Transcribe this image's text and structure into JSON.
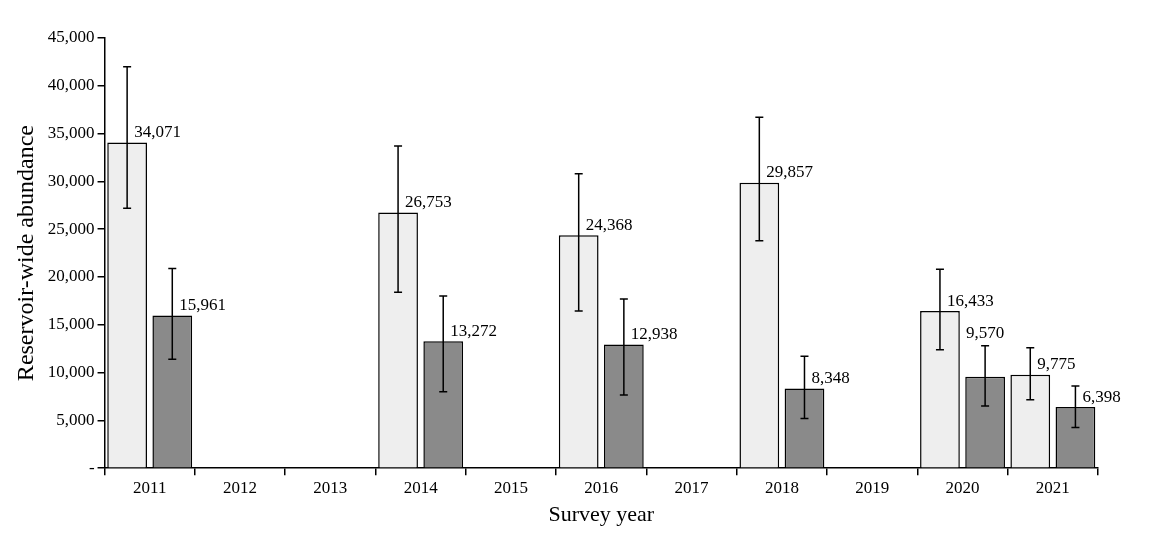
{
  "chart_data": {
    "type": "bar",
    "xlabel": "Survey year",
    "ylabel": "Reservoir-wide abundance",
    "categories": [
      "2011",
      "2012",
      "2013",
      "2014",
      "2015",
      "2016",
      "2017",
      "2018",
      "2019",
      "2020",
      "2021"
    ],
    "series": [
      {
        "color": "#eeeeee",
        "values": [
          34071,
          null,
          null,
          26753,
          null,
          24368,
          null,
          29857,
          null,
          16433,
          9775
        ],
        "errors": [
          [
            27200,
            42000
          ],
          null,
          null,
          [
            18400,
            33700
          ],
          null,
          [
            16450,
            30800
          ],
          null,
          [
            23800,
            36700
          ],
          null,
          [
            12400,
            20800
          ],
          [
            7150,
            12600
          ]
        ],
        "value_labels": [
          "34,071",
          null,
          null,
          "26,753",
          null,
          "24,368",
          null,
          "29,857",
          null,
          "16,433",
          "9,775"
        ]
      },
      {
        "color": "#8a8a8a",
        "values": [
          15961,
          null,
          null,
          13272,
          null,
          12938,
          null,
          8348,
          null,
          9570,
          6398
        ],
        "errors": [
          [
            11400,
            20900
          ],
          null,
          null,
          [
            8000,
            18000
          ],
          null,
          [
            7650,
            17700
          ],
          null,
          [
            5200,
            11700
          ],
          null,
          [
            6500,
            12800
          ],
          [
            4250,
            8600
          ]
        ],
        "value_labels": [
          "15,961",
          null,
          null,
          "13,272",
          null,
          "12,938",
          null,
          "8,348",
          null,
          "9,570",
          "6,398"
        ]
      }
    ],
    "ylim": [
      0,
      45000
    ],
    "yticks": [
      {
        "value": 0,
        "label": "-"
      },
      {
        "value": 5000,
        "label": "5,000"
      },
      {
        "value": 10000,
        "label": "10,000"
      },
      {
        "value": 15000,
        "label": "15,000"
      },
      {
        "value": 20000,
        "label": "20,000"
      },
      {
        "value": 25000,
        "label": "25,000"
      },
      {
        "value": 30000,
        "label": "30,000"
      },
      {
        "value": 35000,
        "label": "35,000"
      },
      {
        "value": 40000,
        "label": "40,000"
      },
      {
        "value": 45000,
        "label": "45,000"
      }
    ],
    "grid": false,
    "legend": false
  }
}
